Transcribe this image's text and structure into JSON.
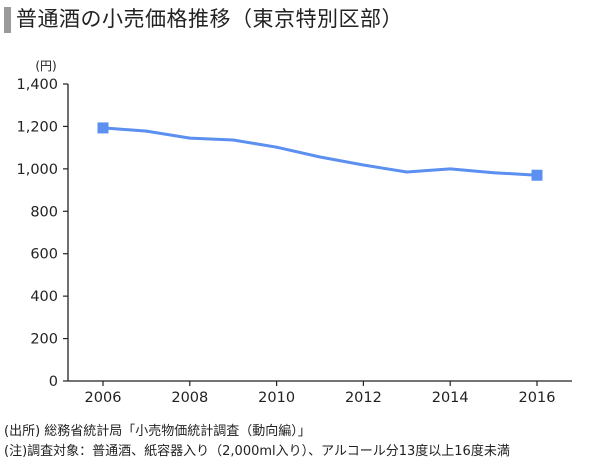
{
  "title": "普通酒の小売価格推移（東京特別区部）",
  "chart_data": {
    "type": "line",
    "title": "普通酒の小売価格推移（東京特別区部）",
    "unit_label": "(円)",
    "xlabel": "",
    "ylabel": "",
    "x": [
      2006,
      2007,
      2008,
      2009,
      2010,
      2011,
      2012,
      2013,
      2014,
      2015,
      2016
    ],
    "xticks": [
      "2006",
      "2008",
      "2010",
      "2012",
      "2014",
      "2016"
    ],
    "xlim": [
      2006,
      2016
    ],
    "yticks": [
      "0",
      "200",
      "400",
      "600",
      "800",
      "1,000",
      "1,200",
      "1,400"
    ],
    "ylim": [
      0,
      1400
    ],
    "grid": false,
    "series": [
      {
        "values": [
          1193,
          1178,
          1145,
          1136,
          1102,
          1056,
          1018,
          985,
          1000,
          982,
          970
        ],
        "color": "#5b8ff0",
        "endpoint_markers": "square"
      }
    ]
  },
  "notes": [
    "(出所) 総務省統計局「小売物価統計調査（動向編）」",
    "(注)調査対象：普通酒、紙容器入り（2,000ml入り）、アルコール分13度以上16度未満"
  ]
}
